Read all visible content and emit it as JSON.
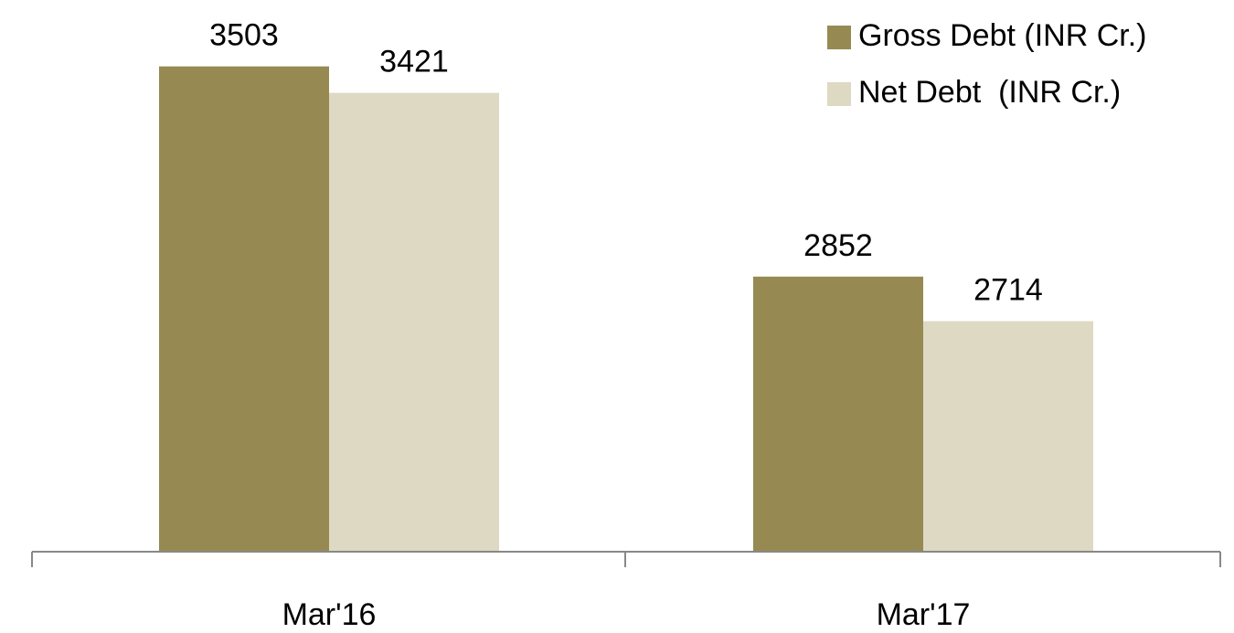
{
  "chart_data": {
    "type": "bar",
    "categories": [
      "Mar'16",
      "Mar'17"
    ],
    "series": [
      {
        "name": "Gross Debt (INR Cr.)",
        "color": "#968a52",
        "values": [
          3503,
          2852
        ]
      },
      {
        "name": "Net Debt  (INR Cr.)",
        "color": "#ddd9c3",
        "values": [
          3421,
          2714
        ]
      }
    ],
    "ylim": [
      2000,
      4000
    ],
    "legend": "top-right"
  }
}
